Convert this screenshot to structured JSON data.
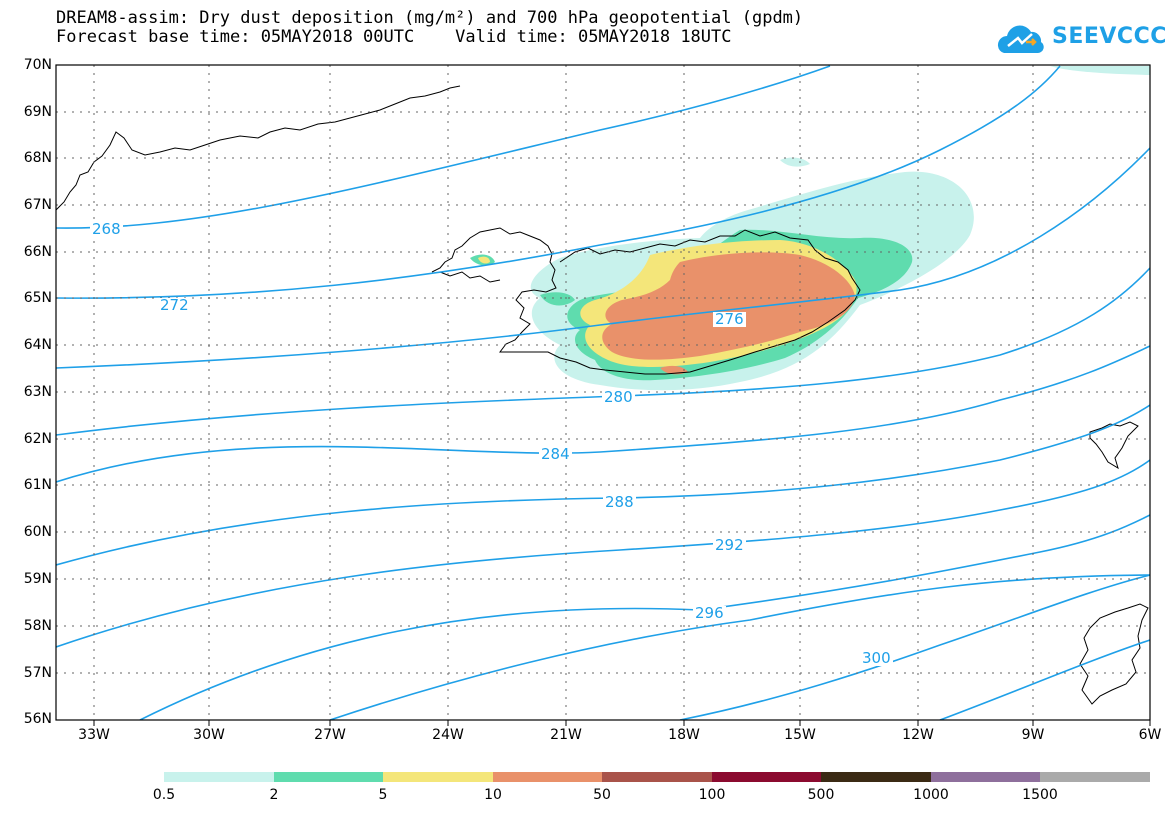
{
  "title": {
    "line1": "DREAM8-assim: Dry dust deposition (mg/m²) and 700 hPa geopotential (gpdm)",
    "line2": "Forecast base time: 05MAY2018 00UTC    Valid time: 05MAY2018 18UTC"
  },
  "logo": {
    "text": "SEEVCCC",
    "icon": "cloud-icon"
  },
  "map": {
    "lat_labels": [
      "70N",
      "69N",
      "68N",
      "67N",
      "66N",
      "65N",
      "64N",
      "63N",
      "62N",
      "61N",
      "60N",
      "59N",
      "58N",
      "57N",
      "56N"
    ],
    "lon_labels": [
      "33W",
      "30W",
      "27W",
      "24W",
      "21W",
      "18W",
      "15W",
      "12W",
      "9W",
      "6W"
    ],
    "contour_labels": [
      "268",
      "272",
      "276",
      "280",
      "284",
      "288",
      "292",
      "296",
      "300"
    ],
    "contour_color": "#1fa0e8"
  },
  "legend": {
    "colors": [
      "#c8f2ec",
      "#5fdcae",
      "#f4e67a",
      "#e9916a",
      "#a9534a",
      "#8b0a2f",
      "#3b2a14",
      "#8e6f9c",
      "#aaaaaa"
    ],
    "labels": [
      "0.5",
      "2",
      "5",
      "10",
      "50",
      "100",
      "500",
      "1000",
      "1500"
    ]
  }
}
